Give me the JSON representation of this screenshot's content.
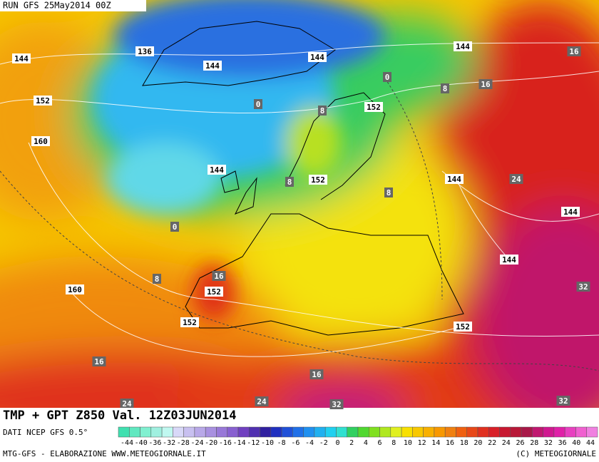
{
  "header": {
    "run": "RUN GFS 25May2014 00Z"
  },
  "map": {
    "contour_labels": [
      "144",
      "136",
      "144",
      "144",
      "144",
      "16",
      "0",
      "8",
      "16",
      "152",
      "0",
      "8",
      "152",
      "160",
      "144",
      "8",
      "152",
      "8",
      "144",
      "24",
      "144",
      "0",
      "16",
      "8",
      "152",
      "160",
      "144",
      "32",
      "152",
      "152",
      "16",
      "16",
      "24",
      "32",
      "32",
      "24"
    ]
  },
  "footer": {
    "title": "TMP + GPT Z850 Val. 12Z03JUN2014",
    "source": "DATI NCEP GFS 0.5°",
    "credit": "MTG-GFS - ELABORAZIONE WWW.METEOGIORNALE.IT",
    "copyright": "(C) METEOGIORNALE",
    "scale_labels": [
      "-44",
      "-40",
      "-36",
      "-32",
      "-28",
      "-24",
      "-20",
      "-16",
      "-14",
      "-12",
      "-10",
      "-8",
      "-6",
      "-4",
      "-2",
      "0",
      "2",
      "4",
      "6",
      "8",
      "10",
      "12",
      "14",
      "16",
      "18",
      "20",
      "22",
      "24",
      "26",
      "28",
      "32",
      "36",
      "40",
      "44"
    ]
  }
}
